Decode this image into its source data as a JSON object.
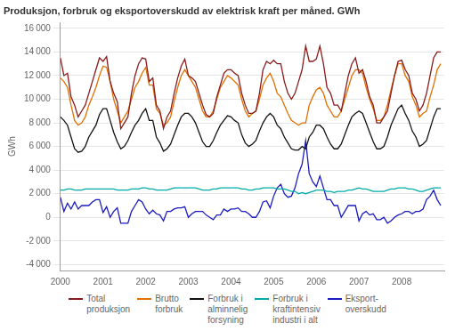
{
  "chart_data": {
    "type": "line",
    "title": "Produksjon, forbruk og eksportoverskudd av elektrisk kraft per måned. GWh",
    "ylabel": "GWh",
    "x": [
      2000,
      2000.0833333333333,
      2000.1666666666667,
      2000.25,
      2000.3333333333333,
      2000.4166666666667,
      2000.5,
      2000.5833333333333,
      2000.6666666666667,
      2000.75,
      2000.8333333333333,
      2000.9166666666667,
      2001,
      2001.0833333333333,
      2001.1666666666667,
      2001.25,
      2001.3333333333333,
      2001.4166666666667,
      2001.5,
      2001.5833333333333,
      2001.6666666666667,
      2001.75,
      2001.8333333333333,
      2001.9166666666667,
      2002,
      2002.0833333333333,
      2002.1666666666667,
      2002.25,
      2002.3333333333333,
      2002.4166666666667,
      2002.5,
      2002.5833333333333,
      2002.6666666666667,
      2002.75,
      2002.8333333333333,
      2002.9166666666667,
      2003,
      2003.0833333333333,
      2003.1666666666667,
      2003.25,
      2003.3333333333333,
      2003.4166666666667,
      2003.5,
      2003.5833333333333,
      2003.6666666666667,
      2003.75,
      2003.8333333333333,
      2003.9166666666667,
      2004,
      2004.0833333333333,
      2004.1666666666667,
      2004.25,
      2004.3333333333333,
      2004.4166666666667,
      2004.5,
      2004.5833333333333,
      2004.6666666666667,
      2004.75,
      2004.8333333333333,
      2004.9166666666667,
      2005,
      2005.0833333333333,
      2005.1666666666667,
      2005.25,
      2005.3333333333333,
      2005.4166666666667,
      2005.5,
      2005.5833333333333,
      2005.6666666666667,
      2005.75,
      2005.8333333333333,
      2005.9166666666667,
      2006,
      2006.0833333333333,
      2006.1666666666667,
      2006.25,
      2006.3333333333333,
      2006.4166666666667,
      2006.5,
      2006.5833333333333,
      2006.6666666666667,
      2006.75,
      2006.8333333333333,
      2006.9166666666667,
      2007,
      2007.0833333333333,
      2007.1666666666667,
      2007.25,
      2007.3333333333333,
      2007.4166666666667,
      2007.5,
      2007.5833333333333,
      2007.6666666666667,
      2007.75,
      2007.8333333333333,
      2007.9166666666667,
      2008,
      2008.0833333333333,
      2008.1666666666667,
      2008.25,
      2008.3333333333333,
      2008.4166666666667,
      2008.5,
      2008.5833333333333,
      2008.6666666666667,
      2008.75,
      2008.8333333333333,
      2008.9166666666667
    ],
    "xlim": [
      2000,
      2009
    ],
    "xticks": [
      2000,
      2001,
      2002,
      2003,
      2004,
      2005,
      2006,
      2007,
      2008
    ],
    "ylim": [
      -4500,
      16500
    ],
    "yticks": [
      {
        "value": -4000,
        "label": "-4 000"
      },
      {
        "value": -2000,
        "label": "-2 000"
      },
      0,
      {
        "value": 2000,
        "label": "2 000"
      },
      {
        "value": 4000,
        "label": "4 000"
      },
      {
        "value": 6000,
        "label": "6 000"
      },
      {
        "value": 8000,
        "label": "8 000"
      },
      {
        "value": 10000,
        "label": "10 000"
      },
      {
        "value": 12000,
        "label": "12 000"
      },
      {
        "value": 14000,
        "label": "14 000"
      },
      {
        "value": 16000,
        "label": "16 000"
      }
    ],
    "grid": true,
    "legend": "bottom",
    "series": [
      {
        "name": "Total\nproduksjon",
        "color": "#8B1A1A",
        "values": [
          13500,
          12000,
          12200,
          10200,
          9500,
          8500,
          9000,
          9500,
          10500,
          11500,
          12500,
          13500,
          13200,
          13600,
          11500,
          10500,
          9800,
          7500,
          8000,
          8500,
          10500,
          12000,
          13000,
          13500,
          13400,
          11500,
          11800,
          9500,
          9000,
          7500,
          8500,
          9000,
          10500,
          11800,
          12800,
          13400,
          12000,
          11800,
          11500,
          10500,
          9500,
          8700,
          8500,
          8800,
          10200,
          11200,
          12200,
          12500,
          12500,
          12200,
          12000,
          10500,
          9500,
          8800,
          8800,
          9000,
          10500,
          12500,
          13200,
          13000,
          13300,
          13000,
          13000,
          11500,
          10500,
          10000,
          10500,
          11500,
          12500,
          14500,
          13200,
          13200,
          13400,
          14500,
          13000,
          11000,
          10500,
          9500,
          9500,
          9000,
          10500,
          12000,
          13000,
          13500,
          12200,
          12500,
          11500,
          10200,
          9500,
          8000,
          8000,
          8500,
          9000,
          10500,
          12000,
          13200,
          13300,
          12500,
          12000,
          10500,
          10000,
          9000,
          9500,
          10500,
          12000,
          13500,
          14000,
          14000
        ]
      },
      {
        "name": "Brutto\nforbruk",
        "color": "#E07000",
        "values": [
          11800,
          11500,
          11000,
          9500,
          8200,
          7800,
          8000,
          8500,
          9500,
          10200,
          11000,
          12000,
          12800,
          12700,
          11500,
          10000,
          9000,
          8000,
          8500,
          9000,
          10000,
          11000,
          11500,
          12200,
          12700,
          11200,
          11200,
          9200,
          8800,
          7800,
          8000,
          8500,
          9800,
          11000,
          12000,
          12500,
          12000,
          11500,
          11000,
          10000,
          9000,
          8500,
          8500,
          9000,
          10000,
          11000,
          11500,
          12000,
          11800,
          11500,
          11200,
          10000,
          9000,
          8500,
          8800,
          9000,
          10000,
          11200,
          11800,
          12200,
          11500,
          10500,
          10200,
          9500,
          8800,
          8200,
          8000,
          7800,
          8000,
          8000,
          9500,
          10200,
          10800,
          11000,
          10500,
          9500,
          9000,
          8500,
          8500,
          9000,
          10000,
          11000,
          12000,
          12500,
          12500,
          12200,
          11000,
          10000,
          9200,
          8200,
          8200,
          8500,
          9500,
          10800,
          12000,
          13000,
          13000,
          12000,
          11500,
          10200,
          9500,
          8500,
          8800,
          9000,
          10200,
          11200,
          12500,
          13000
        ]
      },
      {
        "name": "Forbruk i\nalminnelig\nforsyning",
        "color": "#111111",
        "values": [
          8500,
          8200,
          7800,
          6800,
          5800,
          5500,
          5600,
          6000,
          6800,
          7300,
          7800,
          8700,
          9200,
          9200,
          8200,
          7200,
          6400,
          5800,
          6000,
          6500,
          7200,
          7800,
          8200,
          8800,
          9200,
          8200,
          8200,
          6800,
          6300,
          5600,
          5800,
          6200,
          7000,
          7800,
          8500,
          8800,
          8800,
          8500,
          8000,
          7200,
          6400,
          6000,
          6000,
          6500,
          7200,
          7800,
          8200,
          8600,
          8500,
          8200,
          8000,
          7000,
          6300,
          6000,
          6200,
          6500,
          7300,
          8000,
          8500,
          8800,
          8500,
          7800,
          7500,
          6800,
          6300,
          5800,
          5700,
          5700,
          6000,
          5800,
          6800,
          7200,
          7800,
          7800,
          7500,
          6800,
          6200,
          5800,
          5800,
          6200,
          7000,
          7800,
          8500,
          8800,
          9000,
          8800,
          8000,
          7200,
          6400,
          5800,
          5800,
          6000,
          6800,
          7800,
          8500,
          9200,
          9500,
          8800,
          8200,
          7300,
          6800,
          6000,
          6200,
          6500,
          7500,
          8500,
          9200,
          9200
        ]
      },
      {
        "name": "Forbruk i\nkraftintensiv\nindustri i alt",
        "color": "#00AAAA",
        "values": [
          2300,
          2300,
          2400,
          2400,
          2300,
          2300,
          2300,
          2400,
          2400,
          2400,
          2400,
          2400,
          2400,
          2400,
          2400,
          2400,
          2300,
          2300,
          2300,
          2300,
          2400,
          2400,
          2400,
          2500,
          2500,
          2400,
          2400,
          2300,
          2300,
          2300,
          2300,
          2400,
          2500,
          2500,
          2500,
          2500,
          2500,
          2500,
          2500,
          2400,
          2300,
          2300,
          2300,
          2400,
          2400,
          2500,
          2500,
          2500,
          2500,
          2500,
          2500,
          2400,
          2400,
          2300,
          2300,
          2400,
          2400,
          2500,
          2500,
          2500,
          2500,
          2400,
          2400,
          2400,
          2300,
          2200,
          2200,
          2000,
          2100,
          2000,
          2100,
          2200,
          2300,
          2300,
          2300,
          2200,
          2200,
          2100,
          2200,
          2200,
          2200,
          2300,
          2300,
          2400,
          2500,
          2400,
          2400,
          2300,
          2200,
          2200,
          2200,
          2200,
          2300,
          2400,
          2400,
          2500,
          2500,
          2500,
          2400,
          2400,
          2300,
          2200,
          2200,
          2300,
          2400,
          2500,
          2500,
          2500
        ]
      },
      {
        "name": "Eksport-\noverskudd",
        "color": "#1A1ABF",
        "values": [
          1700,
          500,
          1200,
          700,
          1300,
          700,
          1000,
          1000,
          1000,
          1300,
          1500,
          1500,
          400,
          900,
          0,
          500,
          800,
          -500,
          -500,
          -500,
          500,
          1000,
          1500,
          1300,
          700,
          300,
          600,
          300,
          200,
          -300,
          500,
          500,
          700,
          800,
          800,
          900,
          0,
          300,
          500,
          500,
          500,
          200,
          0,
          -200,
          200,
          200,
          700,
          500,
          700,
          700,
          800,
          500,
          500,
          300,
          0,
          0,
          500,
          1300,
          1400,
          800,
          1800,
          2500,
          2800,
          2000,
          1700,
          1800,
          2500,
          3700,
          4500,
          6500,
          3700,
          3000,
          2600,
          3500,
          2500,
          1500,
          1500,
          1000,
          1000,
          0,
          500,
          1000,
          1000,
          1000,
          -300,
          300,
          500,
          200,
          300,
          -200,
          -200,
          0,
          -500,
          -300,
          0,
          200,
          300,
          500,
          500,
          300,
          500,
          500,
          700,
          1500,
          1800,
          2300,
          1500,
          1000
        ]
      }
    ]
  }
}
